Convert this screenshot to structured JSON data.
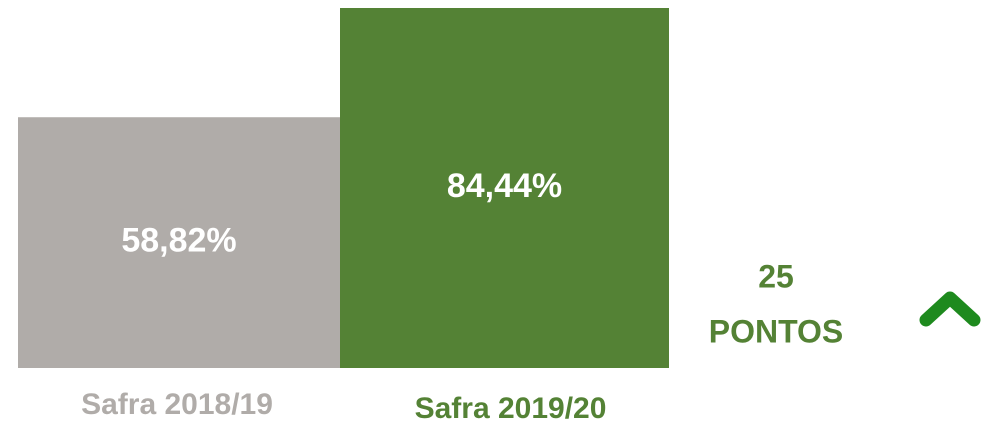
{
  "chart_data": {
    "type": "bar",
    "categories": [
      "Safra 2018/19",
      "Safra 2019/20"
    ],
    "values": [
      58.82,
      84.44
    ],
    "value_labels": [
      "58,82%",
      "84,44%"
    ],
    "colors": [
      "#b0aca9",
      "#548235"
    ],
    "annotation": [
      "25",
      "PONTOS"
    ]
  }
}
